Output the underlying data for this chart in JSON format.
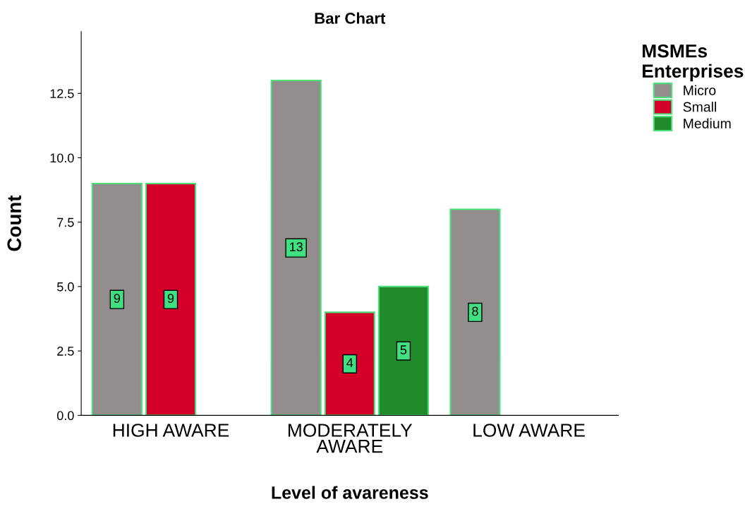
{
  "chart_data": {
    "type": "bar",
    "title": "Bar Chart",
    "xlabel": "Level of avareness",
    "ylabel": "Count",
    "legend_title": "MSMEs\nEnterprises",
    "categories": [
      "HIGH AWARE",
      "MODERATELY\nAWARE",
      "LOW AWARE"
    ],
    "series": [
      {
        "name": "Micro",
        "color": "#938d8d",
        "values": [
          9,
          13,
          8
        ]
      },
      {
        "name": "Small",
        "color": "#d4002a",
        "values": [
          9,
          4,
          null
        ]
      },
      {
        "name": "Medium",
        "color": "#218a2b",
        "values": [
          null,
          5,
          null
        ]
      }
    ],
    "ylim": [
      0,
      14.9
    ],
    "yticks": [
      {
        "value": 0,
        "label": "0.0"
      },
      {
        "value": 2.5,
        "label": "2.5"
      },
      {
        "value": 5,
        "label": "5.0"
      },
      {
        "value": 7.5,
        "label": "7.5"
      },
      {
        "value": 10,
        "label": "10.0"
      },
      {
        "value": 12.5,
        "label": "12.5"
      }
    ],
    "data_labels": true,
    "grid": false,
    "legend": "right"
  }
}
